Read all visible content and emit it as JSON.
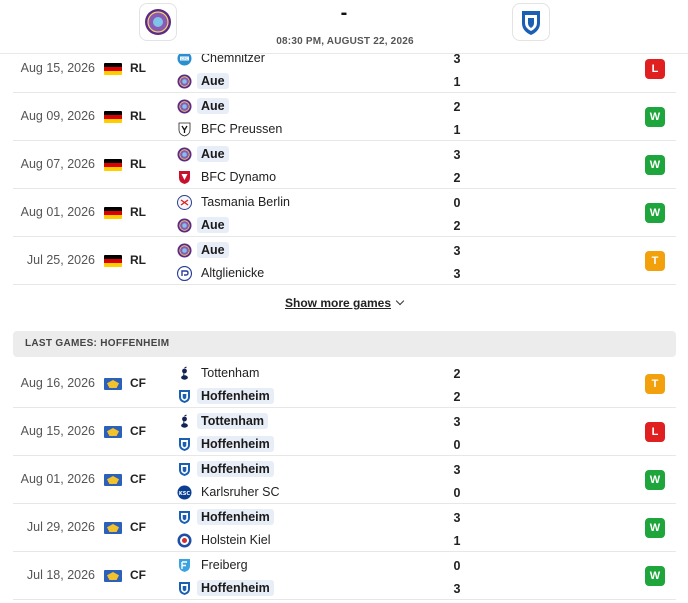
{
  "header": {
    "home_team_logo_icon": "aue-crest-icon",
    "away_team_logo_icon": "hoffenheim-crest-icon",
    "score": "-",
    "datetime": "08:30 PM, AUGUST 22, 2026"
  },
  "aue_games": [
    {
      "date": "Aug 15, 2026",
      "flag": "germany",
      "league": "RL",
      "home": "Chemnitzer",
      "home_icon": "chemnitzer-crest-icon",
      "home_hl": false,
      "away": "Aue",
      "away_icon": "aue-crest-icon",
      "away_hl": true,
      "home_goals": "3",
      "away_goals": "1",
      "result": "L"
    },
    {
      "date": "Aug 09, 2026",
      "flag": "germany",
      "league": "RL",
      "home": "Aue",
      "home_icon": "aue-crest-icon",
      "home_hl": true,
      "away": "BFC Preussen",
      "away_icon": "bfc-preussen-crest-icon",
      "away_hl": false,
      "home_goals": "2",
      "away_goals": "1",
      "result": "W"
    },
    {
      "date": "Aug 07, 2026",
      "flag": "germany",
      "league": "RL",
      "home": "Aue",
      "home_icon": "aue-crest-icon",
      "home_hl": true,
      "away": "BFC Dynamo",
      "away_icon": "bfc-dynamo-crest-icon",
      "away_hl": false,
      "home_goals": "3",
      "away_goals": "2",
      "result": "W"
    },
    {
      "date": "Aug 01, 2026",
      "flag": "germany",
      "league": "RL",
      "home": "Tasmania Berlin",
      "home_icon": "tasmania-crest-icon",
      "home_hl": false,
      "away": "Aue",
      "away_icon": "aue-crest-icon",
      "away_hl": true,
      "home_goals": "0",
      "away_goals": "2",
      "result": "W"
    },
    {
      "date": "Jul 25, 2026",
      "flag": "germany",
      "league": "RL",
      "home": "Aue",
      "home_icon": "aue-crest-icon",
      "home_hl": true,
      "away": "Altglienicke",
      "away_icon": "altglienicke-crest-icon",
      "away_hl": false,
      "home_goals": "3",
      "away_goals": "3",
      "result": "T"
    }
  ],
  "show_more_label": "Show more games",
  "hoffenheim_section_title": "LAST GAMES: HOFFENHEIM",
  "hoffenheim_games": [
    {
      "date": "Aug 16, 2026",
      "flag": "international",
      "league": "CF",
      "home": "Tottenham",
      "home_icon": "tottenham-crest-icon",
      "home_hl": false,
      "away": "Hoffenheim",
      "away_icon": "hoffenheim-crest-icon",
      "away_hl": true,
      "home_goals": "2",
      "away_goals": "2",
      "result": "T"
    },
    {
      "date": "Aug 15, 2026",
      "flag": "international",
      "league": "CF",
      "home": "Tottenham",
      "home_icon": "tottenham-crest-icon",
      "home_hl": true,
      "away": "Hoffenheim",
      "away_icon": "hoffenheim-crest-icon",
      "away_hl": true,
      "home_goals": "3",
      "away_goals": "0",
      "result": "L"
    },
    {
      "date": "Aug 01, 2026",
      "flag": "international",
      "league": "CF",
      "home": "Hoffenheim",
      "home_icon": "hoffenheim-crest-icon",
      "home_hl": true,
      "away": "Karlsruher SC",
      "away_icon": "karlsruher-crest-icon",
      "away_hl": false,
      "home_goals": "3",
      "away_goals": "0",
      "result": "W"
    },
    {
      "date": "Jul 29, 2026",
      "flag": "international",
      "league": "CF",
      "home": "Hoffenheim",
      "home_icon": "hoffenheim-crest-icon",
      "home_hl": true,
      "away": "Holstein Kiel",
      "away_icon": "holstein-kiel-crest-icon",
      "away_hl": false,
      "home_goals": "3",
      "away_goals": "1",
      "result": "W"
    },
    {
      "date": "Jul 18, 2026",
      "flag": "international",
      "league": "CF",
      "home": "Freiberg",
      "home_icon": "freiberg-crest-icon",
      "home_hl": false,
      "away": "Hoffenheim",
      "away_icon": "hoffenheim-crest-icon",
      "away_hl": true,
      "home_goals": "0",
      "away_goals": "3",
      "result": "W"
    }
  ],
  "colors": {
    "win": "#1ea53c",
    "loss": "#e02020",
    "draw": "#f2a10c",
    "highlight": "#e8eef8"
  }
}
